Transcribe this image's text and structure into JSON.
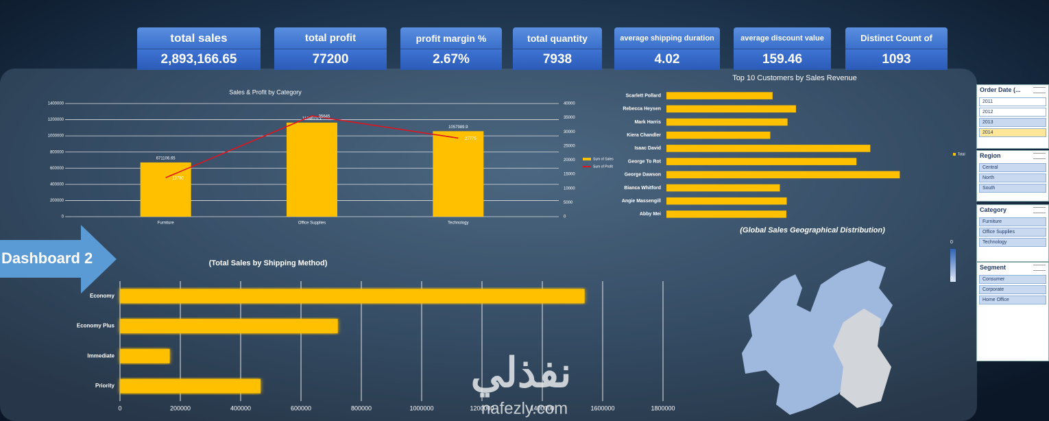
{
  "kpis": [
    {
      "title": "total sales",
      "value": "2,893,166.65"
    },
    {
      "title": "total profit",
      "value": "77200"
    },
    {
      "title": "profit margin %",
      "value": "2.67%"
    },
    {
      "title": "total quantity",
      "value": "7938"
    },
    {
      "title": "average shipping duration",
      "value": "4.02"
    },
    {
      "title": "average discount value",
      "value": "159.46"
    },
    {
      "title": "Distinct Count of",
      "value": "1093"
    }
  ],
  "nav": {
    "label": "Dashboard 2"
  },
  "chart_data": [
    {
      "type": "bar",
      "title": "Sales & Profit by Category",
      "categories": [
        "Furniture",
        "Office Supplies",
        "Technology"
      ],
      "series": [
        {
          "name": "Sum of Sales",
          "color": "#ffc000",
          "values": [
            671106.65,
            1164070.1,
            1057989.9
          ]
        },
        {
          "name": "Sum of Profit",
          "color": "#e0141e",
          "type": "line",
          "axis": "y2",
          "values": [
            13780,
            35645,
            27775
          ]
        }
      ],
      "ylim": [
        0,
        1400000
      ],
      "yticks": [
        0,
        200000,
        400000,
        600000,
        800000,
        1000000,
        1200000,
        1400000
      ],
      "y2lim": [
        0,
        40000
      ],
      "y2ticks": [
        0,
        5000,
        10000,
        15000,
        20000,
        25000,
        30000,
        35000,
        40000
      ],
      "grid": true,
      "legend": "right"
    },
    {
      "type": "bar",
      "orientation": "horizontal",
      "title": "Top 10 Customers by Sales Revenue",
      "categories": [
        "Scarlett Pollard",
        "Rebecca Heysen",
        "Mark Harris",
        "Kiera Chandler",
        "Isaac David",
        "George To Rot",
        "George Dawson",
        "Bianca Whitford",
        "Angie Massengill",
        "Abby Mei"
      ],
      "series": [
        {
          "name": "Total",
          "color": "#ffc000",
          "values": [
            2.77,
            3.38,
            3.16,
            2.71,
            5.32,
            4.96,
            6.09,
            2.96,
            3.14,
            3.13
          ]
        }
      ],
      "xlim": [
        0,
        7.3
      ],
      "legend": "right"
    },
    {
      "type": "bar",
      "orientation": "horizontal",
      "title": "(Total Sales by Shipping Method)",
      "categories": [
        "Economy",
        "Economy Plus",
        "Immediate",
        "Priority"
      ],
      "series": [
        {
          "color": "#ffc000",
          "values": [
            1540000,
            722000,
            165000,
            466000
          ]
        }
      ],
      "xlim": [
        0,
        1800000
      ],
      "xticks": [
        0,
        200000,
        400000,
        600000,
        800000,
        1000000,
        1200000,
        1400000,
        1600000,
        1800000
      ],
      "grid": true
    },
    {
      "type": "map",
      "title": "(Global Sales Geographical Distribution)",
      "scale_ticks": [
        0,
        0
      ]
    }
  ],
  "slicers": [
    {
      "title": "Order Date (...",
      "items": [
        "2011",
        "2012",
        "2013",
        "2014"
      ],
      "selected": [
        3
      ]
    },
    {
      "title": "Region",
      "items": [
        "Central",
        "North",
        "South"
      ]
    },
    {
      "title": "Category",
      "items": [
        "Furniture",
        "Office Supplies",
        "Technology"
      ]
    },
    {
      "title": "Segment",
      "items": [
        "Consumer",
        "Corporate",
        "Home Office"
      ]
    }
  ],
  "watermark": {
    "arabic": "نفذلي",
    "latin": "nafezly.com"
  }
}
